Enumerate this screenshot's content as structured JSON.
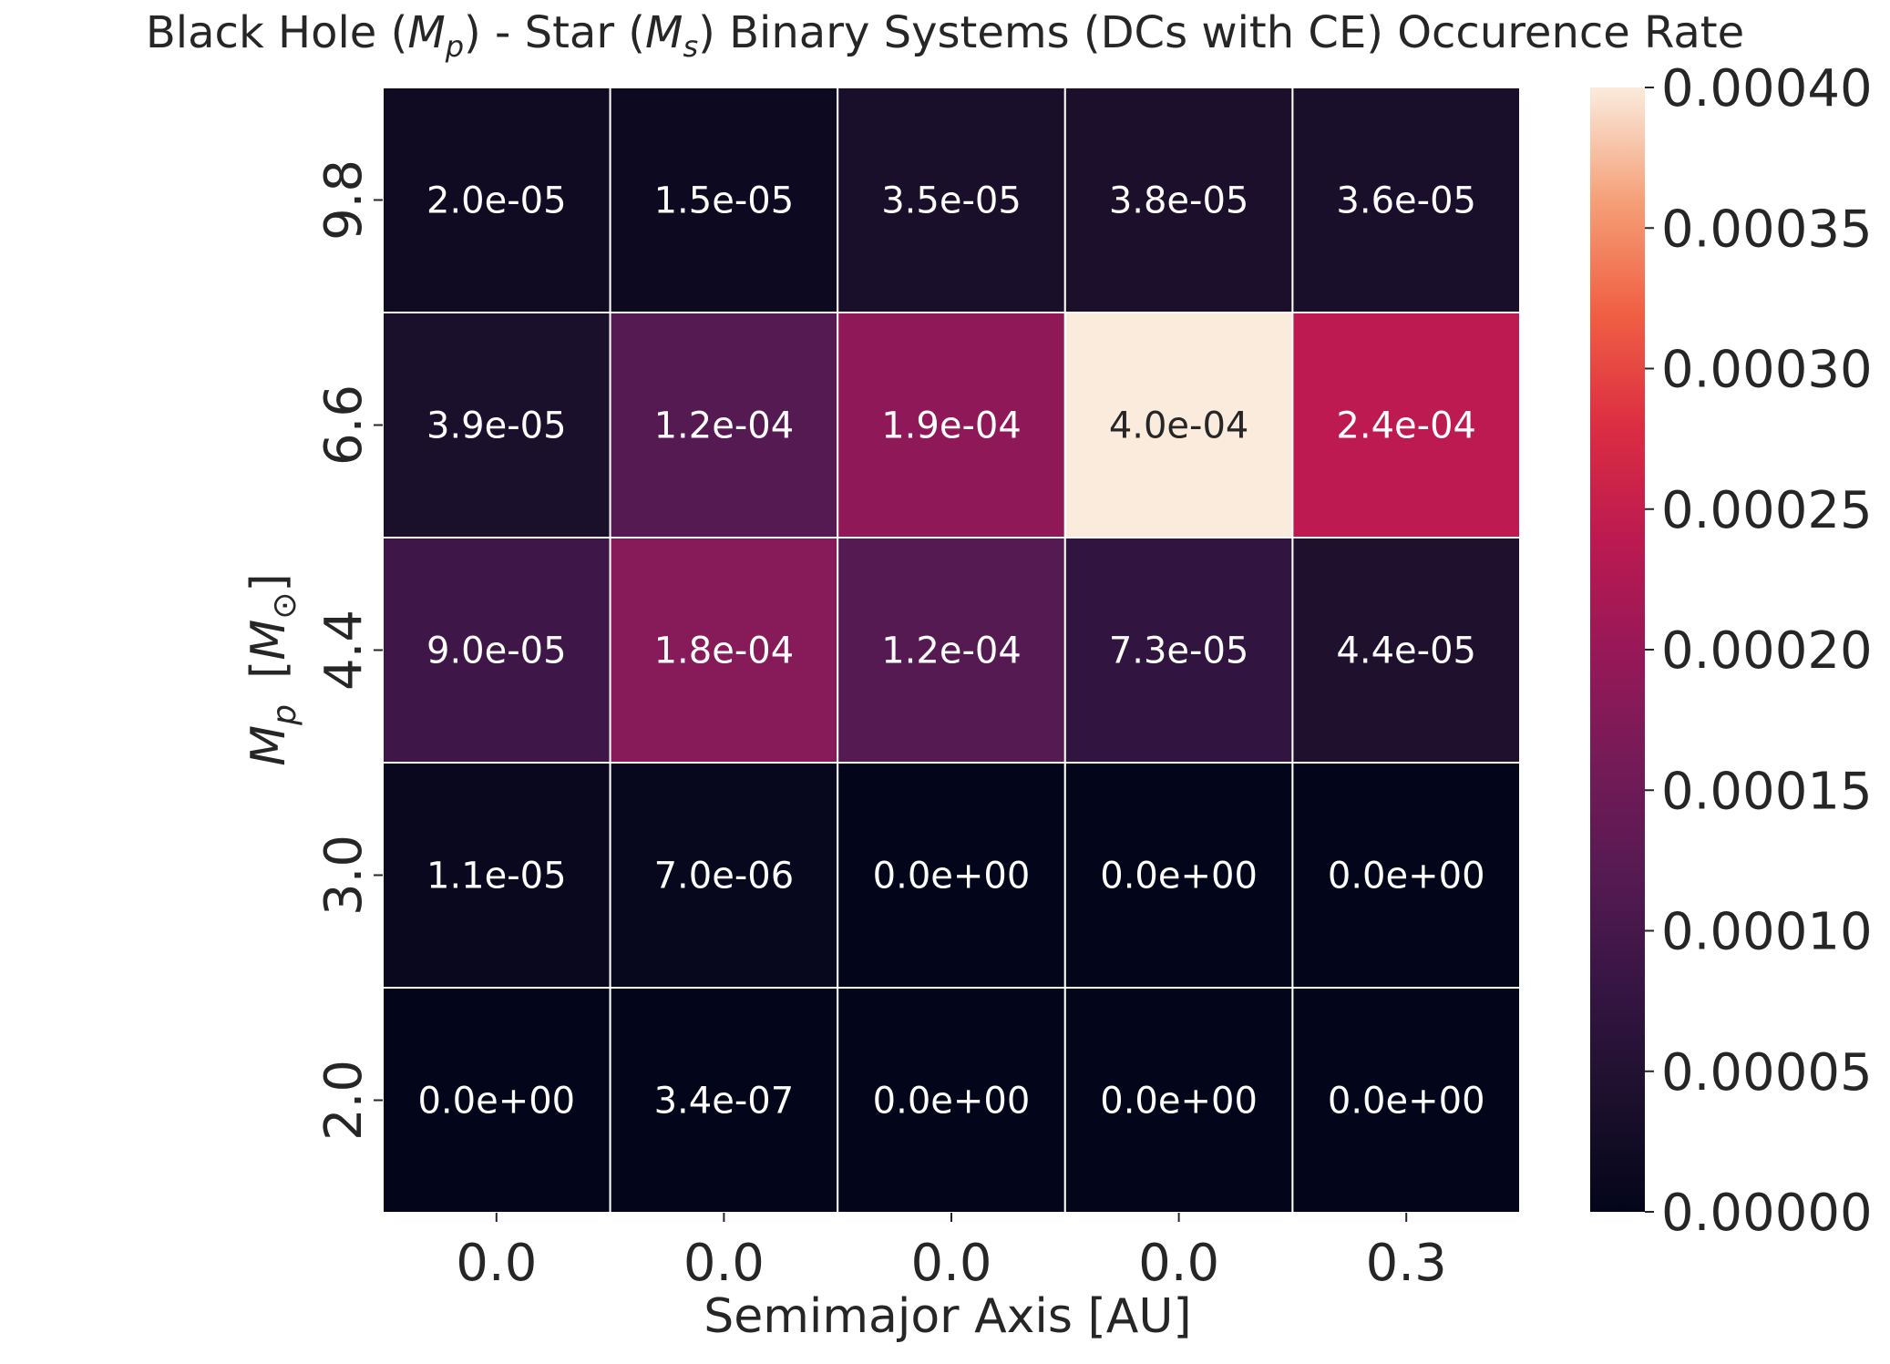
{
  "chart_data": {
    "type": "heatmap",
    "title_parts": {
      "prefix": "Black Hole (",
      "mp_symbol": "M",
      "mp_sub": "p",
      "middle": ")  - Star (",
      "ms_symbol": "M",
      "ms_sub": "s",
      "suffix": ") Binary Systems (DCs with CE) Occurence Rate"
    },
    "xlabel": "Semimajor Axis [AU]",
    "ylabel_parts": {
      "symbol": "M",
      "sub": "p",
      "unit_open": "[",
      "unit_symbol": "M",
      "unit_sub": "⊙",
      "unit_close": "]"
    },
    "x_tick_labels": [
      "0.0",
      "0.0",
      "0.0",
      "0.0",
      "0.3"
    ],
    "y_tick_labels": [
      "9.8",
      "6.6",
      "4.4",
      "3.0",
      "2.0"
    ],
    "values": [
      [
        2e-05,
        1.5e-05,
        3.5e-05,
        3.8e-05,
        3.6e-05
      ],
      [
        3.9e-05,
        0.00012,
        0.00019,
        0.0004,
        0.00024
      ],
      [
        9e-05,
        0.00018,
        0.00012,
        7.3e-05,
        4.4e-05
      ],
      [
        1.1e-05,
        7e-06,
        0.0,
        0.0,
        0.0
      ],
      [
        0.0,
        3.4e-07,
        0.0,
        0.0,
        0.0
      ]
    ],
    "cell_labels": [
      [
        "2.0e-05",
        "1.5e-05",
        "3.5e-05",
        "3.8e-05",
        "3.6e-05"
      ],
      [
        "3.9e-05",
        "1.2e-04",
        "1.9e-04",
        "4.0e-04",
        "2.4e-04"
      ],
      [
        "9.0e-05",
        "1.8e-04",
        "1.2e-04",
        "7.3e-05",
        "4.4e-05"
      ],
      [
        "1.1e-05",
        "7.0e-06",
        "0.0e+00",
        "0.0e+00",
        "0.0e+00"
      ],
      [
        "0.0e+00",
        "3.4e-07",
        "0.0e+00",
        "0.0e+00",
        "0.0e+00"
      ]
    ],
    "colorbar": {
      "range": [
        0.0,
        0.0004
      ],
      "tick_values": [
        0.0,
        5e-05,
        0.0001,
        0.00015,
        0.0002,
        0.00025,
        0.0003,
        0.00035,
        0.0004
      ],
      "tick_labels": [
        "0.00000",
        "0.00005",
        "0.00010",
        "0.00015",
        "0.00020",
        "0.00025",
        "0.00030",
        "0.00035",
        "0.00040"
      ],
      "colormap": "rocket",
      "placement": "right"
    },
    "colors": {
      "cell_border": "#ffffff",
      "text_dark": "#262626",
      "text_light": "#ffffff"
    }
  }
}
